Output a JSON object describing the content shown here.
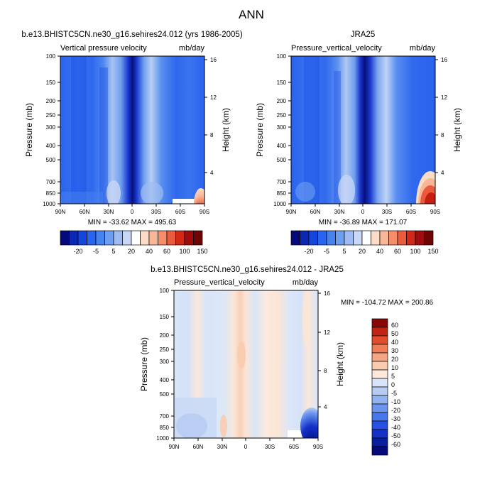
{
  "figure": {
    "title": "ANN"
  },
  "palettes": {
    "full": [
      "#050a7a",
      "#0a28b4",
      "#1446dc",
      "#2864f0",
      "#4682f0",
      "#6e9ef0",
      "#9ebcf2",
      "#c8d7f5",
      "#ffffff",
      "#fbdcc6",
      "#f8b898",
      "#f48e6a",
      "#ea5a3c",
      "#d22818",
      "#a00c0c",
      "#6e0404"
    ],
    "diff": [
      "#050a7a",
      "#0a1ea0",
      "#1432c8",
      "#2850e6",
      "#4678ec",
      "#6c96ee",
      "#92b2f0",
      "#b8ccf3",
      "#d8e4f8",
      "#fde8dc",
      "#f9cbb0",
      "#f4a684",
      "#ee7e5a",
      "#e04c2c",
      "#c22414",
      "#880606"
    ]
  },
  "chart_data": [
    {
      "type": "contour",
      "title": "b.e13.BHISTC5CN.ne30_g16.sehires24.012 (yrs 1986-2005)",
      "left_label": "Vertical pressure velocity",
      "right_label": "mb/day",
      "ylabel": "Pressure (mb)",
      "ylabel_right": "Height (km)",
      "x_ticks": [
        "90N",
        "60N",
        "30N",
        "0",
        "30S",
        "60S",
        "90S"
      ],
      "y_ticks": [
        "100",
        "150",
        "200",
        "250",
        "300",
        "400",
        "500",
        "700",
        "850",
        "1000"
      ],
      "y_right_ticks": [
        "16",
        "12",
        "8",
        "4"
      ],
      "stats": "MIN = -33.62  MAX = 495.63",
      "colorbar": {
        "orientation": "horizontal",
        "labels": [
          "-20",
          "-5",
          "5",
          "20",
          "40",
          "60",
          "100",
          "150"
        ]
      }
    },
    {
      "type": "contour",
      "title": "JRA25",
      "left_label": "Pressure_vertical_velocity",
      "right_label": "mb/day",
      "ylabel": "Pressure (mb)",
      "ylabel_right": "Height (km)",
      "x_ticks": [
        "90N",
        "60N",
        "30N",
        "0",
        "30S",
        "60S",
        "90S"
      ],
      "y_ticks": [
        "100",
        "150",
        "200",
        "250",
        "300",
        "400",
        "500",
        "700",
        "850",
        "1000"
      ],
      "y_right_ticks": [
        "16",
        "12",
        "8",
        "4"
      ],
      "stats": "MIN = -36.89  MAX = 171.07",
      "colorbar": {
        "orientation": "horizontal",
        "labels": [
          "-20",
          "-5",
          "5",
          "20",
          "40",
          "60",
          "100",
          "150"
        ]
      }
    },
    {
      "type": "contour",
      "title": "b.e13.BHISTC5CN.ne30_g16.sehires24.012 - JRA25",
      "left_label": "Pressure_vertical_velocity",
      "right_label": "mb/day",
      "ylabel": "Pressure (mb)",
      "ylabel_right": "Height (km)",
      "x_ticks": [
        "90N",
        "60N",
        "30N",
        "0",
        "30S",
        "60S",
        "90S"
      ],
      "y_ticks": [
        "100",
        "150",
        "200",
        "250",
        "300",
        "400",
        "500",
        "700",
        "850",
        "1000"
      ],
      "y_right_ticks": [
        "16",
        "12",
        "8",
        "4"
      ],
      "stats": "MIN = -104.72  MAX = 200.86",
      "colorbar": {
        "orientation": "vertical",
        "labels": [
          "60",
          "50",
          "40",
          "30",
          "20",
          "10",
          "5",
          "0",
          "-5",
          "-10",
          "-20",
          "-30",
          "-40",
          "-50",
          "-60"
        ]
      }
    }
  ]
}
